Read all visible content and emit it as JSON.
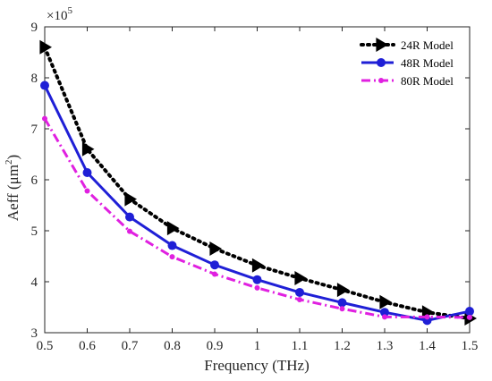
{
  "chart_data": {
    "type": "line",
    "xlabel": "Frequency (THz)",
    "ylabel_main": "Aeff (μm",
    "ylabel_sup": "2",
    "ylabel_close": ")",
    "y_multiplier_base": "×10",
    "y_multiplier_exp": "5",
    "xlim": [
      0.5,
      1.5
    ],
    "ylim": [
      3,
      9
    ],
    "x_ticks": [
      "0.5",
      "0.6",
      "0.7",
      "0.8",
      "0.9",
      "1",
      "1.1",
      "1.2",
      "1.3",
      "1.4",
      "1.5"
    ],
    "y_ticks": [
      "3",
      "4",
      "5",
      "6",
      "7",
      "8",
      "9"
    ],
    "grid": false,
    "legend_position": "top-right",
    "x": [
      0.5,
      0.6,
      0.7,
      0.8,
      0.9,
      1.0,
      1.1,
      1.2,
      1.3,
      1.4,
      1.5
    ],
    "series": [
      {
        "name": "24R Model",
        "values": [
          8.6,
          6.6,
          5.62,
          5.05,
          4.65,
          4.32,
          4.07,
          3.84,
          3.6,
          3.4,
          3.28
        ],
        "color": "#000000",
        "marker": "triangle-right",
        "line_style": "dotted"
      },
      {
        "name": "48R Model",
        "values": [
          7.85,
          6.14,
          5.27,
          4.71,
          4.33,
          4.04,
          3.79,
          3.59,
          3.4,
          3.24,
          3.42
        ],
        "color": "#1f1fd6",
        "marker": "circle",
        "line_style": "solid"
      },
      {
        "name": "80R Model",
        "values": [
          7.2,
          5.78,
          4.99,
          4.49,
          4.15,
          3.88,
          3.65,
          3.47,
          3.31,
          3.31,
          3.3
        ],
        "color": "#e020e0",
        "marker": "small-circle",
        "line_style": "dashdot"
      }
    ]
  }
}
